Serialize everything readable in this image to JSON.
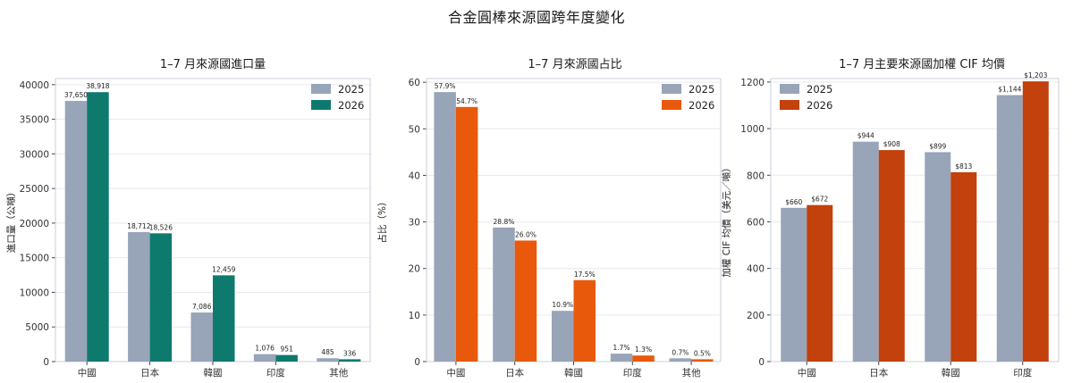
{
  "figure_title": "合金圓棒來源國跨年度變化",
  "colors": {
    "y2025": "#98a4b8",
    "y2026_panel1": "#0e7a6e",
    "y2026_panel2": "#e8590c",
    "y2026_panel3": "#c2410c",
    "grid": "#e6e9f0",
    "axis": "#c9cfda"
  },
  "chart_data": [
    {
      "type": "bar",
      "title": "1–7 月來源國進口量",
      "ylabel": "進口量（公噸）",
      "categories": [
        "中國",
        "日本",
        "韓國",
        "印度",
        "其他"
      ],
      "series": [
        {
          "name": "2025",
          "values": [
            37650,
            18712,
            7086,
            1076,
            485
          ],
          "labels": [
            "37,650",
            "18,712",
            "7,086",
            "1,076",
            "485"
          ]
        },
        {
          "name": "2026",
          "values": [
            38918,
            18526,
            12459,
            951,
            336
          ],
          "labels": [
            "38,918",
            "18,526",
            "12,459",
            "951",
            "336"
          ]
        }
      ],
      "ylim": [
        0,
        40880
      ],
      "yticks": [
        0,
        5000,
        10000,
        15000,
        20000,
        25000,
        30000,
        35000,
        40000
      ],
      "legend": "top-right",
      "grid": true
    },
    {
      "type": "bar",
      "title": "1–7 月來源國占比",
      "ylabel": "占比（%）",
      "categories": [
        "中國",
        "日本",
        "韓國",
        "印度",
        "其他"
      ],
      "series": [
        {
          "name": "2025",
          "values": [
            57.9,
            28.8,
            10.9,
            1.7,
            0.7
          ],
          "labels": [
            "57.9%",
            "28.8%",
            "10.9%",
            "1.7%",
            "0.7%"
          ]
        },
        {
          "name": "2026",
          "values": [
            54.7,
            26.0,
            17.5,
            1.3,
            0.5
          ],
          "labels": [
            "54.7%",
            "26.0%",
            "17.5%",
            "1.3%",
            "0.5%"
          ]
        }
      ],
      "ylim": [
        0,
        60.8
      ],
      "yticks": [
        0,
        10,
        20,
        30,
        40,
        50,
        60
      ],
      "legend": "top-right",
      "grid": true
    },
    {
      "type": "bar",
      "title": "1–7 月主要來源國加權 CIF 均價",
      "ylabel": "加權 CIF 均價（美元／噸）",
      "categories": [
        "中國",
        "日本",
        "韓國",
        "印度"
      ],
      "series": [
        {
          "name": "2025",
          "values": [
            660,
            944,
            899,
            1144
          ],
          "labels": [
            "$660",
            "$944",
            "$899",
            "$1,144"
          ]
        },
        {
          "name": "2026",
          "values": [
            672,
            908,
            813,
            1203
          ],
          "labels": [
            "$672",
            "$908",
            "$813",
            "$1,203"
          ]
        }
      ],
      "ylim": [
        0,
        1215
      ],
      "yticks": [
        0,
        200,
        400,
        600,
        800,
        1000,
        1200
      ],
      "legend": "top-left",
      "grid": true
    }
  ]
}
